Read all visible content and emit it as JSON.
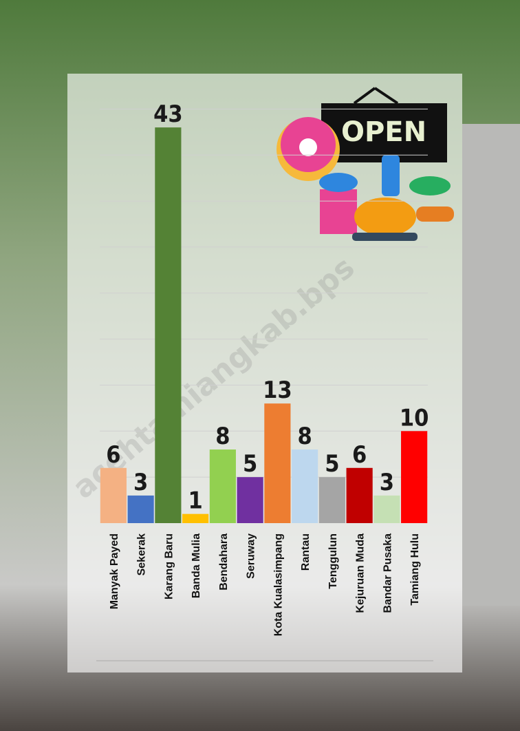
{
  "chart_data": {
    "type": "bar",
    "categories": [
      "Manyak Payed",
      "Sekerak",
      "Karang Baru",
      "Banda Mulia",
      "Bendahara",
      "Seruway",
      "Kota Kualasimpang",
      "Rantau",
      "Tenggulun",
      "Kejuruan Muda",
      "Bandar Pusaka",
      "Tamiang Hulu"
    ],
    "values": [
      6,
      3,
      43,
      1,
      8,
      5,
      13,
      8,
      5,
      6,
      3,
      10
    ],
    "colors": [
      "#f4b183",
      "#4472c4",
      "#548235",
      "#ffc000",
      "#92d050",
      "#7030a0",
      "#ed7d31",
      "#bdd7ee",
      "#a5a5a5",
      "#c00000",
      "#c5e0b4",
      "#ff0000"
    ],
    "ylim": [
      0,
      45
    ],
    "yticks": [
      5,
      10,
      15,
      20,
      25,
      30,
      35,
      40,
      45
    ],
    "grid": true
  },
  "decor": {
    "sign": "OPEN",
    "watermark": "acehtamiangkab.bps"
  }
}
